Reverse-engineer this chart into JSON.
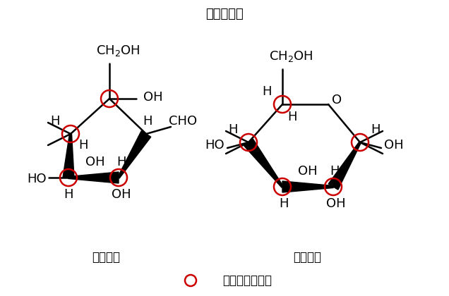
{
  "title": "グルコース",
  "subtitle_left": "鎖状構造",
  "subtitle_right": "環状構造",
  "legend_text": "は不斉炭素原子",
  "bond_color": "#000000",
  "text_color": "#000000",
  "circle_color": "#cc0000",
  "bg_color": "#ffffff"
}
